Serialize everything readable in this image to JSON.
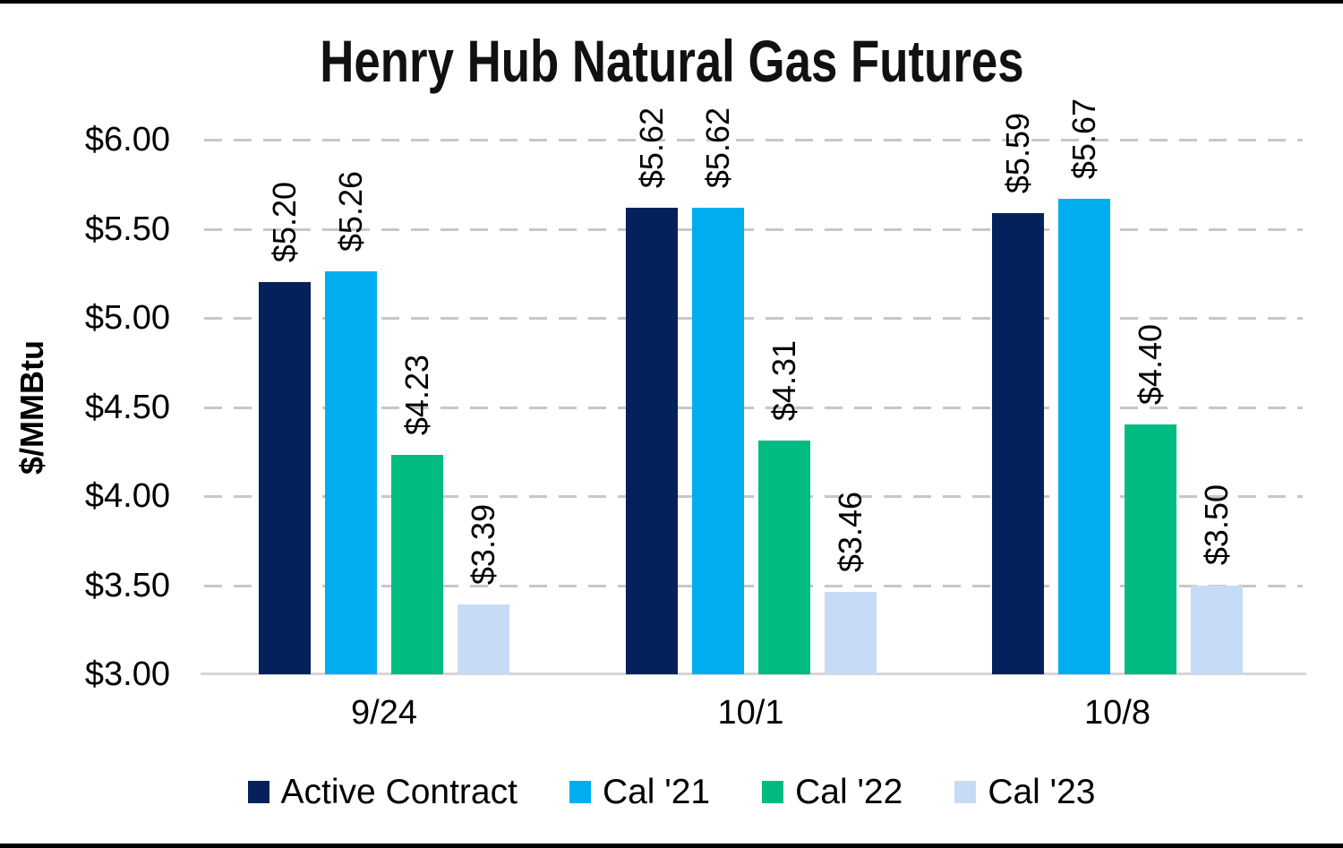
{
  "chart_data": {
    "type": "bar",
    "title": "Henry Hub Natural Gas Futures",
    "ylabel": "$/MMBtu",
    "xlabel": "",
    "categories": [
      "9/24",
      "10/1",
      "10/8"
    ],
    "series": [
      {
        "name": "Active Contract",
        "color": "#05215C",
        "values": [
          5.2,
          5.62,
          5.59
        ]
      },
      {
        "name": "Cal '21",
        "color": "#00AEEF",
        "values": [
          5.26,
          5.62,
          5.67
        ]
      },
      {
        "name": "Cal '22",
        "color": "#00BC82",
        "values": [
          4.23,
          4.31,
          4.4
        ]
      },
      {
        "name": "Cal '23",
        "color": "#C6DCF6",
        "values": [
          3.39,
          3.46,
          3.5
        ]
      }
    ],
    "data_label_format": "$0.00",
    "ylim": [
      3.0,
      6.0
    ],
    "ytick_labels_top_to_bottom": [
      "$6.00",
      "$5.50",
      "$5.00",
      "$4.50",
      "$4.00",
      "$3.50",
      "$3.00"
    ],
    "grid": "horizontal-dashed",
    "gridline_color": "#C7C7C7",
    "axis_line_color": "#D6D6D6",
    "legend_position": "bottom"
  }
}
